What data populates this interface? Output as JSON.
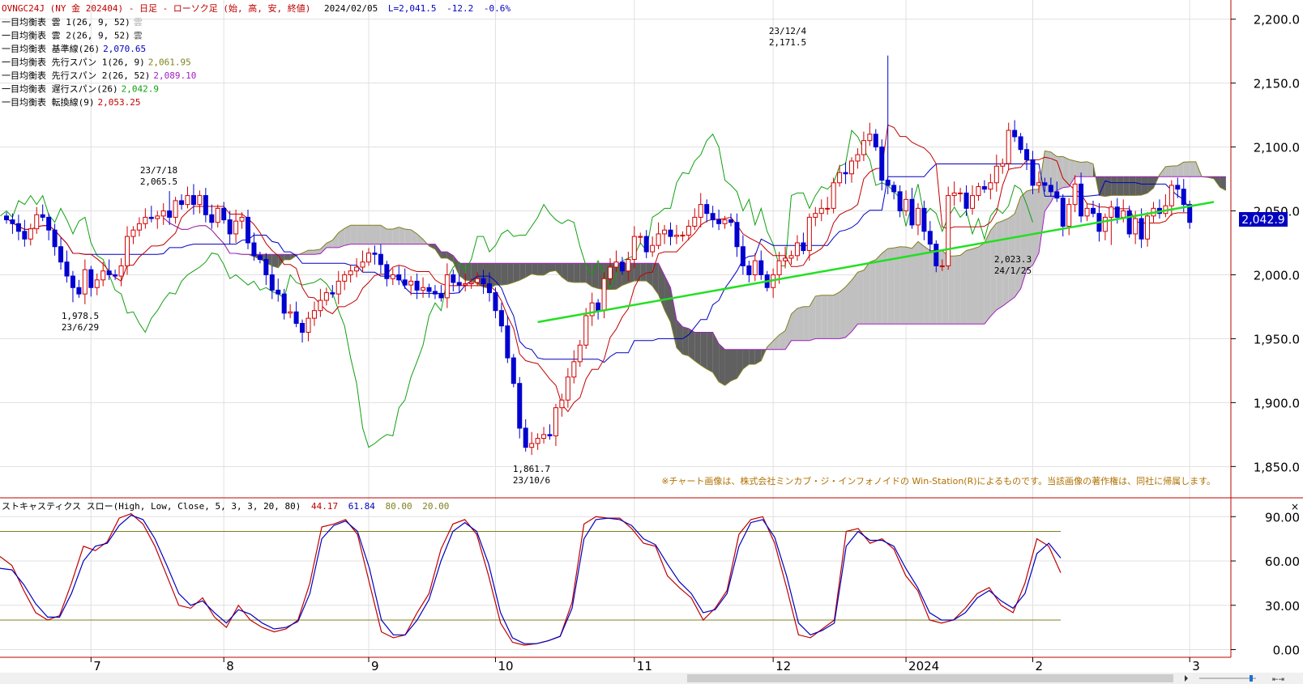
{
  "header": {
    "title": "OVNGC24J (NY 金 202404) - 日足 - ローソク足 (始, 高, 安, 終値)",
    "date": "2024/02/05",
    "last": "L=2,041.5",
    "change": "-12.2",
    "pct": "-0.6%"
  },
  "legend": [
    {
      "label": "一目均衡表 雲 1(26, 9, 52)",
      "value": "雲",
      "color": "#b0b0b0"
    },
    {
      "label": "一目均衡表 雲 2(26, 9, 52)",
      "value": "雲",
      "color": "#505050"
    },
    {
      "label": "一目均衡表 基準線(26)",
      "value": "2,070.65",
      "color": "#0000c0"
    },
    {
      "label": "一目均衡表 先行スパン 1(26, 9)",
      "value": "2,061.95",
      "color": "#808020"
    },
    {
      "label": "一目均衡表 先行スパン 2(26, 52)",
      "value": "2,089.10",
      "color": "#a020c0"
    },
    {
      "label": "一目均衡表 遅行スパン(26)",
      "value": "2,042.9",
      "color": "#10a010"
    },
    {
      "label": "一目均衡表 転換線(9)",
      "value": "2,053.25",
      "color": "#c00000"
    }
  ],
  "annotations": {
    "high_date": "23/12/4",
    "high_value": "2,171.5",
    "jul_date": "23/7/18",
    "jul_value": "2,065.5",
    "jun_value": "1,978.5",
    "jun_date": "23/6/29",
    "oct_value": "1,861.7",
    "oct_date": "23/10/6",
    "jan_value": "2,023.3",
    "jan_date": "24/1/25"
  },
  "price_tag": "2,042.9",
  "copyright": "※チャート画像は、株式会社ミンカブ・ジ・インフォノイドの Win-Station(R)によるものです。当該画像の著作権は、同社に帰属します。",
  "stoch": {
    "title": "ストキャスティクス スロー(High, Low, Close, 5, 3, 3, 20, 80)",
    "v1": "44.17",
    "v2": "61.84",
    "v3": "80.00",
    "v4": "20.00",
    "close_glyph": "×"
  },
  "xaxis_labels": [
    "7",
    "8",
    "9",
    "10",
    "11",
    "12",
    "2024",
    "2",
    "3"
  ],
  "colors": {
    "up": "#d00000",
    "down": "#0000d0",
    "trend": "#22e022",
    "kumo_bull": "#c0c0c0",
    "kumo_bear": "#606060",
    "grid": "#e0e0e0",
    "frame": "#c00000"
  },
  "chart_data": [
    {
      "type": "candlestick",
      "title": "OVNGC24J (NY 金 202404) 日足",
      "ylim": [
        1835,
        2215
      ],
      "yticks": [
        1850,
        1900,
        1950,
        2000,
        2050,
        2100,
        2150,
        2200
      ],
      "ytick_labels": [
        "1,850.0",
        "1,900.0",
        "1,950.0",
        "2,000.0",
        "2,050.0",
        "2,100.0",
        "2,150.0",
        "2,200.0"
      ],
      "x_month_labels": [
        "7",
        "8",
        "9",
        "10",
        "11",
        "12",
        "2024",
        "2",
        "3"
      ],
      "close": [
        2043,
        2040,
        2034,
        2028,
        2036,
        2047,
        2045,
        2035,
        2022,
        2010,
        1999,
        1990,
        1985,
        2004,
        1990,
        1996,
        2003,
        2000,
        1999,
        2007,
        2030,
        2035,
        2040,
        2045,
        2044,
        2046,
        2050,
        2045,
        2058,
        2055,
        2062,
        2055,
        2062,
        2047,
        2041,
        2052,
        2043,
        2032,
        2042,
        2045,
        2025,
        2015,
        2012,
        2000,
        1988,
        1985,
        1970,
        1971,
        1962,
        1955,
        1966,
        1972,
        1980,
        1986,
        1985,
        1995,
        2000,
        2003,
        2006,
        2010,
        2017,
        2016,
        2008,
        1997,
        2000,
        1996,
        1992,
        1995,
        1988,
        1990,
        1987,
        1985,
        1982,
        2000,
        1994,
        1992,
        1993,
        1994,
        1997,
        1993,
        1986,
        1972,
        1960,
        1935,
        1915,
        1880,
        1865,
        1868,
        1872,
        1875,
        1874,
        1896,
        1902,
        1920,
        1932,
        1945,
        1968,
        1978,
        1972,
        1997,
        2006,
        2010,
        2003,
        2012,
        2030,
        2030,
        2018,
        2023,
        2032,
        2035,
        2030,
        2031,
        2031,
        2038,
        2045,
        2055,
        2048,
        2043,
        2040,
        2043,
        2041,
        2022,
        2007,
        2000,
        2011,
        2000,
        1990,
        2000,
        2011,
        2013,
        2015,
        2025,
        2019,
        2045,
        2048,
        2052,
        2052,
        2072,
        2080,
        2079,
        2089,
        2094,
        2105,
        2110,
        2100,
        2074,
        2070,
        2065,
        2050,
        2059,
        2039,
        2052,
        2034,
        2024,
        2007,
        2007,
        2062,
        2064,
        2064,
        2052,
        2062,
        2069,
        2067,
        2072,
        2085,
        2087,
        2113,
        2108,
        2098,
        2090,
        2070,
        2072,
        2070,
        2065,
        2060,
        2038,
        2055,
        2071,
        2046,
        2052,
        2048,
        2034,
        2045,
        2053,
        2045,
        2050,
        2032,
        2044,
        2028,
        2046,
        2052,
        2048,
        2054,
        2070,
        2067,
        2055,
        2041
      ],
      "ichimoku": [
        "tenkan",
        "kijun",
        "senkou_span_1",
        "senkou_span_2",
        "chikou_span"
      ],
      "trendline": [
        [
          88,
          1963
        ],
        [
          200,
          2057
        ]
      ]
    },
    {
      "type": "line",
      "title": "ストキャスティクス スロー",
      "ylim": [
        -3,
        100
      ],
      "yticks": [
        0,
        30,
        60,
        90
      ],
      "ytick_labels": [
        "0.00",
        "30.00",
        "60.00",
        "90.00"
      ],
      "levels": [
        80,
        20
      ],
      "series": [
        {
          "name": "%K",
          "values": [
            63,
            57,
            40,
            25,
            20,
            23,
            45,
            70,
            67,
            73,
            89,
            92,
            85,
            70,
            50,
            30,
            28,
            35,
            22,
            15,
            30,
            20,
            15,
            12,
            14,
            20,
            45,
            83,
            85,
            88,
            78,
            45,
            12,
            8,
            10,
            25,
            38,
            68,
            85,
            88,
            78,
            50,
            18,
            5,
            3,
            4,
            6,
            9,
            32,
            85,
            90,
            89,
            89,
            82,
            72,
            70,
            50,
            42,
            35,
            20,
            28,
            40,
            78,
            88,
            90,
            72,
            42,
            10,
            8,
            14,
            20,
            80,
            82,
            72,
            75,
            68,
            50,
            40,
            20,
            18,
            20,
            28,
            38,
            42,
            30,
            25,
            45,
            75,
            70,
            52
          ]
        },
        {
          "name": "%D",
          "values": [
            55,
            54,
            44,
            31,
            22,
            22,
            38,
            60,
            70,
            72,
            84,
            91,
            88,
            75,
            57,
            38,
            30,
            33,
            25,
            18,
            27,
            24,
            18,
            14,
            15,
            19,
            38,
            75,
            84,
            87,
            80,
            55,
            20,
            10,
            10,
            20,
            34,
            60,
            80,
            86,
            80,
            58,
            25,
            8,
            4,
            4,
            6,
            9,
            28,
            75,
            88,
            89,
            88,
            84,
            75,
            71,
            58,
            46,
            38,
            25,
            27,
            38,
            70,
            86,
            88,
            76,
            50,
            18,
            10,
            13,
            18,
            70,
            80,
            74,
            74,
            70,
            55,
            42,
            25,
            20,
            20,
            25,
            35,
            40,
            33,
            28,
            38,
            65,
            72,
            62
          ]
        }
      ]
    }
  ]
}
